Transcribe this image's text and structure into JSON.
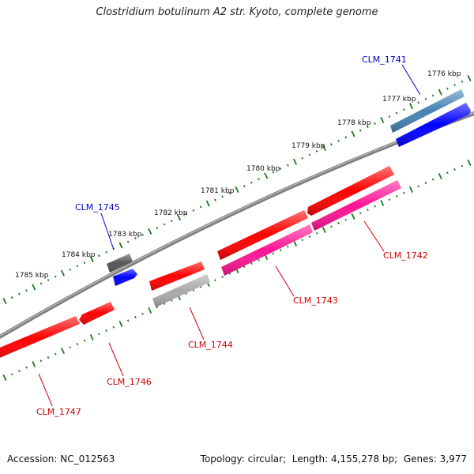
{
  "title": "Clostridium botulinum A2 str. Kyoto, complete genome",
  "footer": {
    "accession_label": "Accession:",
    "accession": "NC_012563",
    "topology_label": "Topology:",
    "topology": "circular",
    "length_label": "Length:",
    "length": "4,155,278 bp",
    "genes_label": "Genes:",
    "genes": "3,977"
  },
  "colors": {
    "backbone": "#808080",
    "ticks": "#1a7a1a",
    "gene_red": "#ff0000",
    "gene_pink": "#ff1493",
    "gene_gray": "#a9a9a9",
    "gene_dark_gray": "#555555",
    "gene_blue": "#0000ff",
    "gene_steel_blue": "#4682b4",
    "label_blue": "#0000cc",
    "label_red": "#cc0000"
  },
  "scale_labels": [
    "1776 kbp",
    "1777 kbp",
    "1778 kbp",
    "1779 kbp",
    "1780 kbp",
    "1781 kbp",
    "1782 kbp",
    "1783 kbp",
    "1784 kbp",
    "1785 kbp"
  ],
  "gene_labels": [
    "CLM_1741",
    "CLM_1742",
    "CLM_1743",
    "CLM_1744",
    "CLM_1745",
    "CLM_1746",
    "CLM_1747"
  ]
}
